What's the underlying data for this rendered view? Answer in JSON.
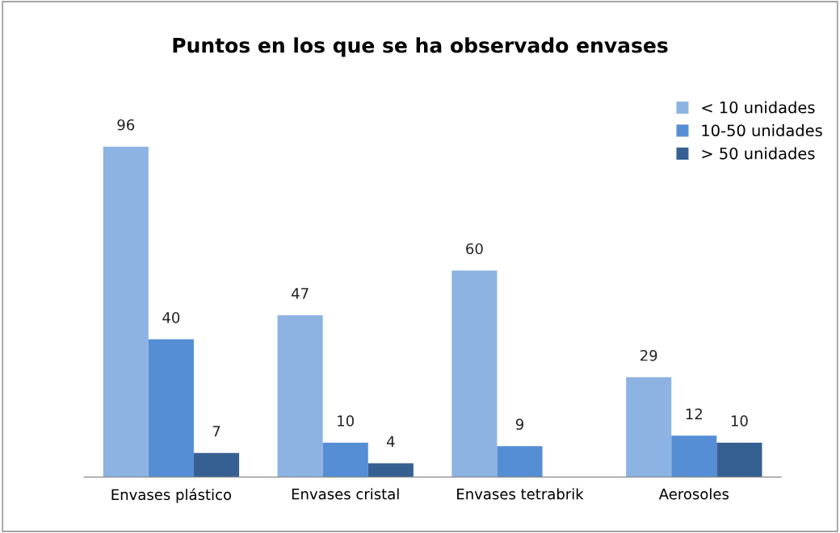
{
  "chart_data": {
    "type": "bar",
    "title": "Puntos en los que se ha observado envases",
    "categories": [
      "Envases plástico",
      "Envases cristal",
      "Envases tetrabrik",
      "Aerosoles"
    ],
    "series": [
      {
        "name": "< 10 unidades",
        "color": "#8db3e2",
        "values": [
          96,
          47,
          60,
          29
        ]
      },
      {
        "name": "10-50 unidades",
        "color": "#558ed5",
        "values": [
          40,
          10,
          9,
          12
        ]
      },
      {
        "name": "> 50 unidades",
        "color": "#376092",
        "values": [
          7,
          4,
          null,
          10
        ]
      }
    ],
    "tick_labels": "x",
    "data_labels": true,
    "legend": "top right",
    "grid": false
  }
}
